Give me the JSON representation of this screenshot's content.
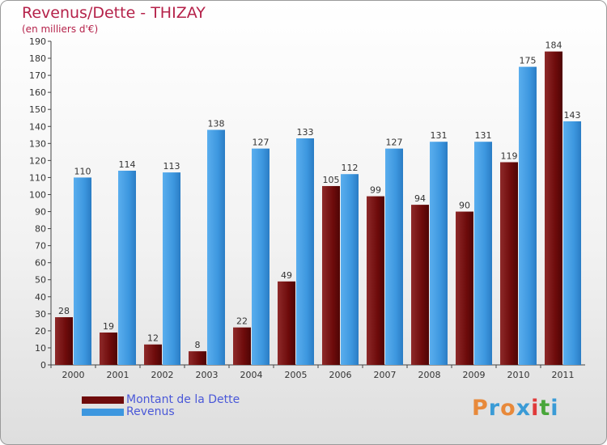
{
  "chart_data": {
    "type": "bar",
    "title": "Revenus/Dette - THIZAY",
    "subtitle": "(en milliers d'€)",
    "categories": [
      "2000",
      "2001",
      "2002",
      "2003",
      "2004",
      "2005",
      "2006",
      "2007",
      "2008",
      "2009",
      "2010",
      "2011"
    ],
    "series": [
      {
        "name": "Montant de la Dette",
        "color": "#6e0b0b",
        "values": [
          28,
          19,
          12,
          8,
          22,
          49,
          105,
          99,
          94,
          90,
          119,
          184
        ]
      },
      {
        "name": "Revenus",
        "color": "#3d97df",
        "values": [
          110,
          114,
          113,
          138,
          127,
          133,
          112,
          127,
          131,
          131,
          175,
          143
        ]
      }
    ],
    "ylim": [
      0,
      190
    ],
    "yticks": [
      0,
      10,
      20,
      30,
      40,
      50,
      60,
      70,
      80,
      90,
      100,
      110,
      120,
      130,
      140,
      150,
      160,
      170,
      180,
      190
    ],
    "grid": false,
    "legend_position": "bottom-left"
  },
  "logo": {
    "letters": [
      "P",
      "r",
      "o",
      "x",
      "i",
      "t",
      "i"
    ],
    "colors": [
      "#e8893a",
      "#3a9bd6",
      "#e8893a",
      "#3a9bd6",
      "#e03a3a",
      "#49a63a",
      "#3a9bd6"
    ]
  }
}
